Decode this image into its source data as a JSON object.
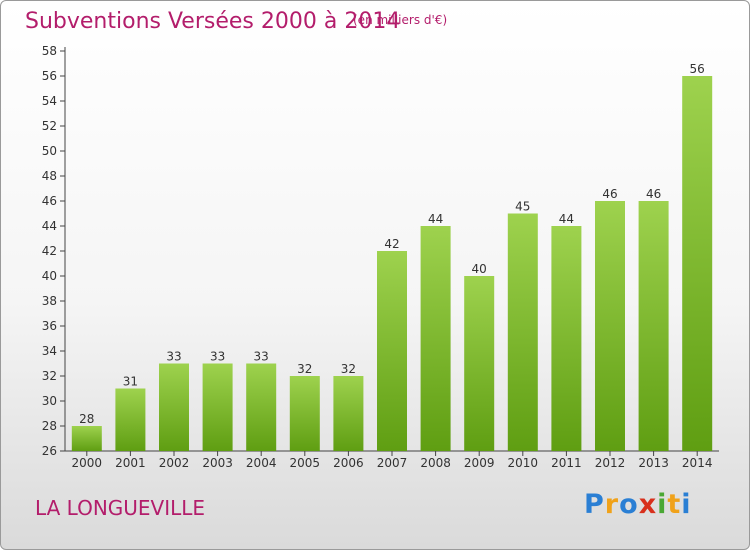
{
  "header": {
    "title": "Subventions Versées 2000 à 2014",
    "unit": "(en milliers d'€)"
  },
  "footer": {
    "commune": "LA LONGUEVILLE",
    "logo_letters": [
      "P",
      "r",
      "o",
      "x",
      "i",
      "t",
      "i"
    ],
    "logo_colors": [
      "#2a7fd4",
      "#f0a21a",
      "#2a7fd4",
      "#d8301c",
      "#4aa834",
      "#f0a21a",
      "#2a7fd4"
    ]
  },
  "colors": {
    "accent": "#b31d6b",
    "bar_light": "#9ed24e",
    "bar_dark": "#5f9e12"
  },
  "chart_data": {
    "type": "bar",
    "categories": [
      "2000",
      "2001",
      "2002",
      "2003",
      "2004",
      "2005",
      "2006",
      "2007",
      "2008",
      "2009",
      "2010",
      "2011",
      "2012",
      "2013",
      "2014"
    ],
    "values": [
      28,
      31,
      33,
      33,
      33,
      32,
      32,
      42,
      44,
      40,
      45,
      44,
      46,
      46,
      56
    ],
    "ylim": [
      26,
      58
    ],
    "yticks": [
      26,
      28,
      30,
      32,
      34,
      36,
      38,
      40,
      42,
      44,
      46,
      48,
      50,
      52,
      54,
      56,
      58
    ],
    "grid": false,
    "legend": "none"
  }
}
